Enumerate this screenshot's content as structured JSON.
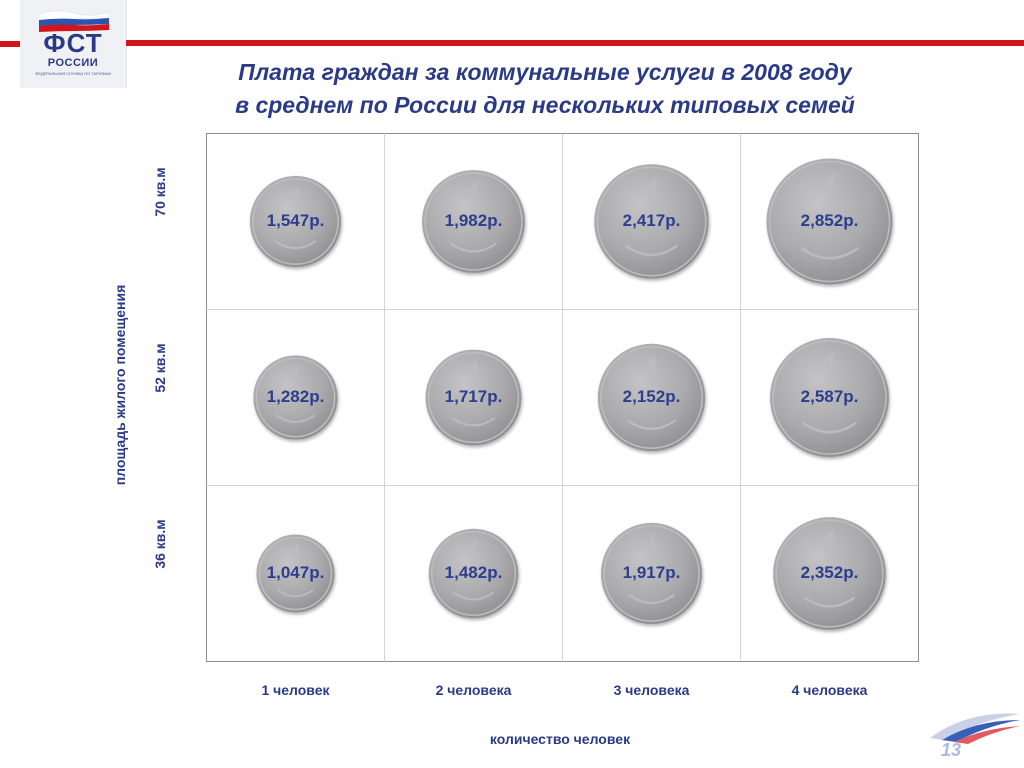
{
  "header": {
    "logo_main": "ФСТ",
    "logo_sub": "РОССИИ",
    "logo_tagline": "ФЕДЕРАЛЬНАЯ СЛУЖБА ПО ТАРИФАМ",
    "brand_red": "#d3141b",
    "brand_blue": "#2b3a86"
  },
  "chart_data": {
    "type": "table",
    "title": "Плата граждан за коммунальные услуги в 2008 году",
    "subtitle": "в среднем по России для нескольких типовых семей",
    "xlabel": "количество человек",
    "ylabel": "площадь жилого помещения",
    "columns": [
      "1 человек",
      "2 человека",
      "3 человека",
      "4 человека"
    ],
    "rows": [
      "70 кв.м",
      "52 кв.м",
      "36 кв.м"
    ],
    "values": [
      [
        1547,
        1982,
        2417,
        2852
      ],
      [
        1282,
        1717,
        2152,
        2587
      ],
      [
        1047,
        1482,
        1917,
        2352
      ]
    ],
    "labels": [
      [
        "1,547р.",
        "1,982р.",
        "2,417р.",
        "2,852р."
      ],
      [
        "1,282р.",
        "1,717р.",
        "2,152р.",
        "2,587р."
      ],
      [
        "1,047р.",
        "1,482р.",
        "1,917р.",
        "2,352р."
      ]
    ],
    "marker": "coin",
    "coin_color": "#a9a9ab",
    "label_color": "#2d3e8c"
  },
  "footer": {
    "page_number": "13"
  }
}
